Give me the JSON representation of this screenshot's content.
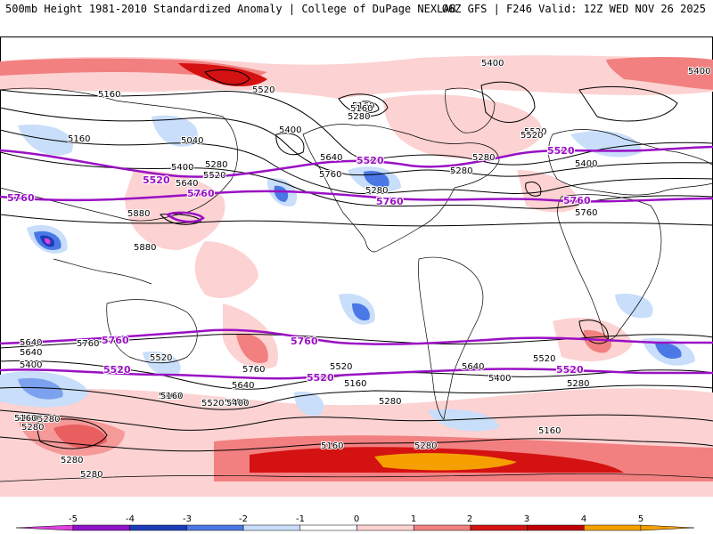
{
  "header": {
    "left_title": "500mb Height 1981-2010 Standardized Anomaly | College of DuPage NEXLAB",
    "right_title": "06Z GFS | F246 Valid: 12Z WED NOV 26 2025"
  },
  "contour_labels_black": [
    "5400",
    "5520",
    "5400",
    "5160",
    "5280",
    "5160",
    "5520",
    "5040",
    "5280",
    "5400",
    "5160",
    "5280",
    "5400",
    "5520",
    "5640",
    "5760",
    "5640",
    "5520",
    "5400",
    "5280",
    "5160",
    "5280",
    "5880",
    "5880",
    "5760",
    "5640",
    "5640",
    "5520",
    "5400",
    "5760",
    "5280",
    "5160",
    "5520",
    "5400",
    "5640",
    "5520",
    "5400",
    "5280",
    "5280",
    "5160",
    "5280",
    "5160",
    "5640",
    "5760",
    "5520",
    "5400",
    "5160",
    "5280",
    "5160",
    "5280",
    "5160",
    "5280",
    "5160",
    "5280"
  ],
  "contour_labels_purple": [
    "5520",
    "5760",
    "5760",
    "5520",
    "5760",
    "5520",
    "5760",
    "5760",
    "5760",
    "5520",
    "5520",
    "5520"
  ],
  "colorbar": {
    "ticks": [
      "-5",
      "-4",
      "-3",
      "-2",
      "-1",
      "0",
      "1",
      "2",
      "3",
      "4",
      "5"
    ],
    "colors": {
      "neg5": "#e040e0",
      "neg4": "#8e14c8",
      "neg3": "#1c3cb8",
      "neg2": "#4a78e6",
      "neg1": "#c8defa",
      "zero": "#ffffff",
      "pos1": "#fcd2d2",
      "pos2": "#f28080",
      "pos3": "#d41212",
      "pos4": "#c00000",
      "pos5": "#f5a000"
    }
  },
  "styles": {
    "contour_color": "#000000",
    "highlight_contour_color": "#9a10c4",
    "coastline_color": "#000000"
  }
}
